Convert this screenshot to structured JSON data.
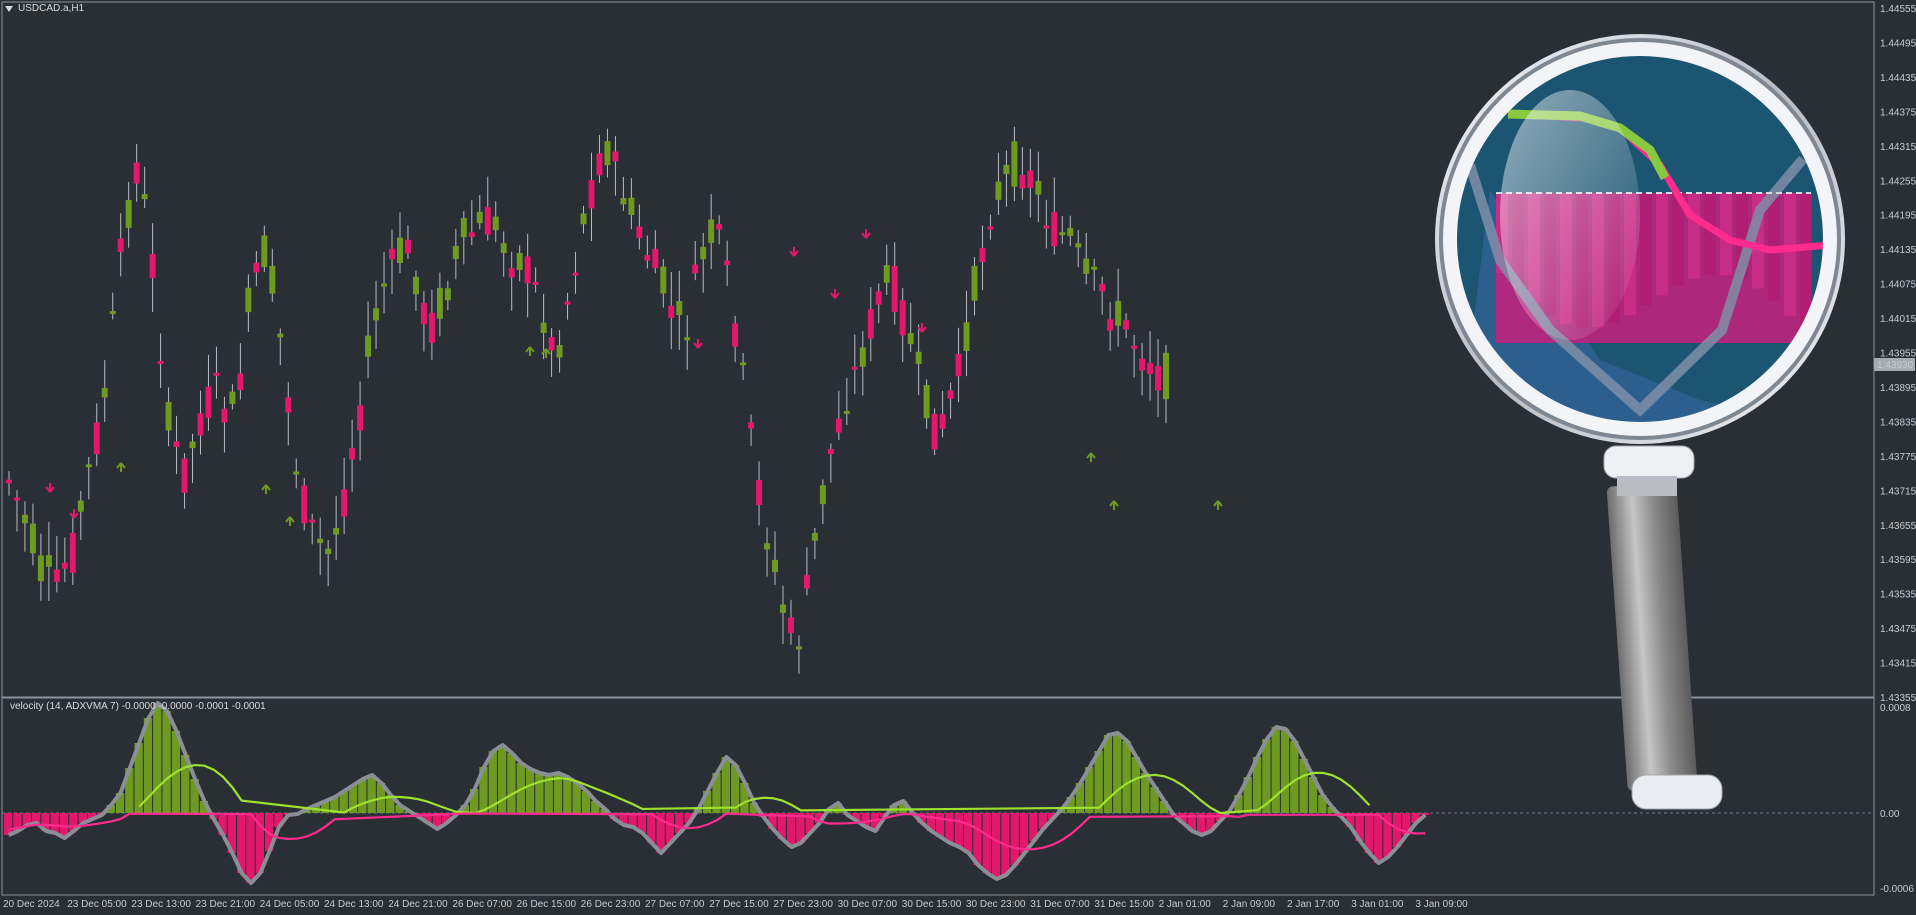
{
  "chart": {
    "symbol_label": "USDCAD.a,H1",
    "indicator_label": "velocity (14, ADXVMA 7) -0.0000 -0.0000 -0.0001 -0.0001",
    "current_price": "1.43930",
    "price_axis_labels": [
      "1.44555",
      "1.44495",
      "1.44435",
      "1.44375",
      "1.44315",
      "1.44255",
      "1.44195",
      "1.44135",
      "1.44075",
      "1.44015",
      "1.43955",
      "1.43895",
      "1.43835",
      "1.43775",
      "1.43715",
      "1.43655",
      "1.43595",
      "1.43535",
      "1.43475",
      "1.43415",
      "1.43355"
    ],
    "indicator_axis_labels": [
      "0.0008",
      "0.00",
      "-0.0006"
    ],
    "time_axis_labels": [
      "20 Dec 2024",
      "23 Dec 05:00",
      "23 Dec 13:00",
      "23 Dec 21:00",
      "24 Dec 05:00",
      "24 Dec 13:00",
      "24 Dec 21:00",
      "26 Dec 07:00",
      "26 Dec 15:00",
      "26 Dec 23:00",
      "27 Dec 07:00",
      "27 Dec 15:00",
      "27 Dec 23:00",
      "30 Dec 07:00",
      "30 Dec 15:00",
      "30 Dec 23:00",
      "31 Dec 07:00",
      "31 Dec 15:00",
      "2 Jan 01:00",
      "2 Jan 09:00",
      "2 Jan 17:00",
      "3 Jan 01:00",
      "3 Jan 09:00"
    ]
  },
  "colors": {
    "background": "#2a2e35",
    "bull": "#6f9a22",
    "bear": "#e3176c",
    "lime": "#9ee22e",
    "pink": "#ff2b8f",
    "grid": "#737985",
    "text": "#c8ccd2"
  },
  "icons": {
    "symbol_menu": "triangle-down-icon",
    "magnifier": "magnifying-glass-icon"
  }
}
